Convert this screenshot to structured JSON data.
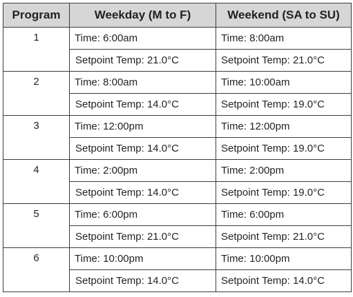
{
  "table": {
    "headers": [
      "Program",
      "Weekday (M to F)",
      "Weekend (SA to SU)"
    ],
    "rows": [
      {
        "program": "1",
        "weekday_time": "Time: 6:00am",
        "weekday_setpoint": "Setpoint Temp: 21.0°C",
        "weekend_time": "Time: 8:00am",
        "weekend_setpoint": "Setpoint Temp: 21.0°C"
      },
      {
        "program": "2",
        "weekday_time": "Time: 8:00am",
        "weekday_setpoint": "Setpoint Temp: 14.0°C",
        "weekend_time": "Time: 10:00am",
        "weekend_setpoint": "Setpoint Temp: 19.0°C"
      },
      {
        "program": "3",
        "weekday_time": "Time: 12:00pm",
        "weekday_setpoint": "Setpoint Temp: 14.0°C",
        "weekend_time": "Time: 12:00pm",
        "weekend_setpoint": "Setpoint Temp: 19.0°C"
      },
      {
        "program": "4",
        "weekday_time": "Time: 2:00pm",
        "weekday_setpoint": "Setpoint Temp: 14.0°C",
        "weekend_time": "Time: 2:00pm",
        "weekend_setpoint": "Setpoint Temp: 19.0°C"
      },
      {
        "program": "5",
        "weekday_time": "Time: 6:00pm",
        "weekday_setpoint": "Setpoint Temp: 21.0°C",
        "weekend_time": "Time: 6:00pm",
        "weekend_setpoint": "Setpoint Temp: 21.0°C"
      },
      {
        "program": "6",
        "weekday_time": "Time: 10:00pm",
        "weekday_setpoint": "Setpoint Temp: 14.0°C",
        "weekend_time": "Time: 10:00pm",
        "weekend_setpoint": "Setpoint Temp: 14.0°C"
      }
    ]
  }
}
